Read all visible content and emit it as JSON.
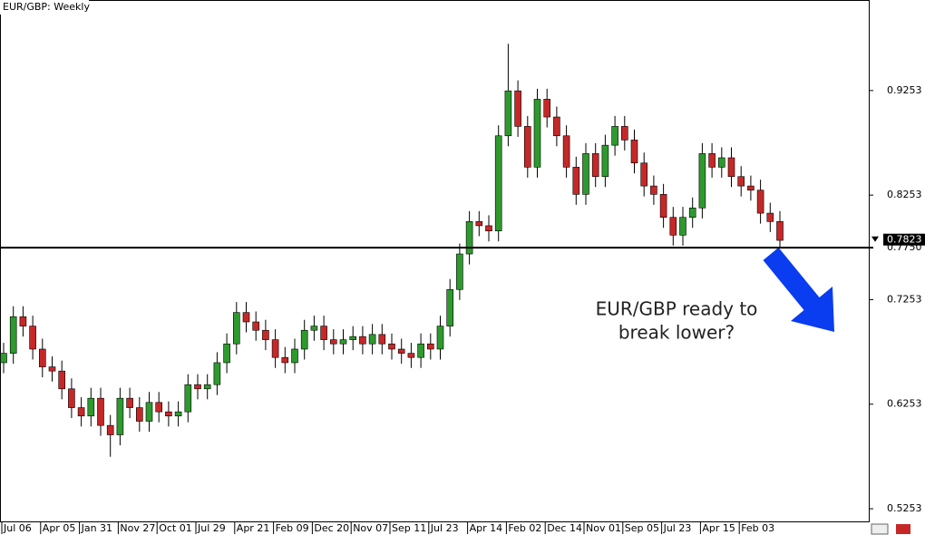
{
  "chart_data": {
    "type": "candlestick",
    "title": "EUR/GBP: Weekly",
    "categories": [
      "Jul 06",
      null,
      null,
      null,
      "Apr 05",
      null,
      null,
      null,
      "Jan 31",
      null,
      null,
      null,
      "Nov 27",
      null,
      null,
      null,
      "Oct 01",
      null,
      null,
      null,
      "Jul 29",
      null,
      null,
      null,
      "Apr 21",
      null,
      null,
      null,
      "Feb 09",
      null,
      null,
      null,
      "Dec 20",
      null,
      null,
      null,
      "Nov 07",
      null,
      null,
      null,
      "Sep 11",
      null,
      null,
      null,
      "Jul 23",
      null,
      null,
      null,
      "Apr 14",
      null,
      null,
      null,
      "Feb 02",
      null,
      null,
      null,
      "Dec 14",
      null,
      null,
      null,
      "Nov 01",
      null,
      null,
      null,
      "Sep 05",
      null,
      null,
      null,
      "Jul 23",
      null,
      null,
      null,
      "Apr 15",
      null,
      null,
      null,
      "Feb 03",
      null,
      null,
      null,
      null
    ],
    "open": [
      0.665,
      0.674,
      0.709,
      0.7,
      0.678,
      0.661,
      0.657,
      0.64,
      0.622,
      0.614,
      0.631,
      0.605,
      0.596,
      0.631,
      0.622,
      0.609,
      0.627,
      0.618,
      0.614,
      0.618,
      0.644,
      0.64,
      0.644,
      0.665,
      0.683,
      0.713,
      0.704,
      0.696,
      0.687,
      0.67,
      0.665,
      0.678,
      0.696,
      0.7,
      0.687,
      0.683,
      0.687,
      0.69,
      0.683,
      0.692,
      0.683,
      0.678,
      0.674,
      0.67,
      0.683,
      0.678,
      0.7,
      0.735,
      0.769,
      0.8,
      0.796,
      0.791,
      0.882,
      0.925,
      0.891,
      0.852,
      0.917,
      0.9,
      0.882,
      0.852,
      0.826,
      0.865,
      0.843,
      0.873,
      0.891,
      0.878,
      0.856,
      0.834,
      0.826,
      0.804,
      0.787,
      0.804,
      0.813,
      0.865,
      0.852,
      0.861,
      0.843,
      0.834,
      0.83,
      0.808,
      0.8
    ],
    "high": [
      0.684,
      0.719,
      0.719,
      0.71,
      0.688,
      0.671,
      0.667,
      0.65,
      0.632,
      0.641,
      0.641,
      0.615,
      0.641,
      0.641,
      0.632,
      0.637,
      0.637,
      0.628,
      0.628,
      0.654,
      0.654,
      0.654,
      0.675,
      0.693,
      0.723,
      0.723,
      0.714,
      0.706,
      0.697,
      0.68,
      0.688,
      0.706,
      0.71,
      0.71,
      0.697,
      0.697,
      0.7,
      0.7,
      0.702,
      0.702,
      0.693,
      0.688,
      0.684,
      0.693,
      0.693,
      0.71,
      0.745,
      0.779,
      0.81,
      0.81,
      0.806,
      0.892,
      0.97,
      0.935,
      0.901,
      0.927,
      0.927,
      0.91,
      0.892,
      0.862,
      0.875,
      0.875,
      0.883,
      0.901,
      0.901,
      0.888,
      0.866,
      0.844,
      0.836,
      0.814,
      0.814,
      0.823,
      0.875,
      0.875,
      0.871,
      0.871,
      0.853,
      0.844,
      0.84,
      0.818,
      0.81
    ],
    "low": [
      0.655,
      0.664,
      0.69,
      0.668,
      0.651,
      0.647,
      0.63,
      0.612,
      0.604,
      0.604,
      0.595,
      0.575,
      0.586,
      0.612,
      0.599,
      0.599,
      0.608,
      0.604,
      0.604,
      0.608,
      0.63,
      0.63,
      0.634,
      0.655,
      0.673,
      0.694,
      0.686,
      0.677,
      0.66,
      0.655,
      0.655,
      0.668,
      0.686,
      0.677,
      0.673,
      0.673,
      0.677,
      0.673,
      0.673,
      0.673,
      0.668,
      0.664,
      0.66,
      0.66,
      0.668,
      0.668,
      0.69,
      0.725,
      0.759,
      0.786,
      0.781,
      0.781,
      0.872,
      0.881,
      0.842,
      0.842,
      0.89,
      0.872,
      0.842,
      0.816,
      0.816,
      0.833,
      0.833,
      0.863,
      0.868,
      0.846,
      0.824,
      0.816,
      0.794,
      0.777,
      0.777,
      0.794,
      0.803,
      0.842,
      0.842,
      0.833,
      0.824,
      0.82,
      0.798,
      0.79,
      0.775
    ],
    "close": [
      0.674,
      0.709,
      0.7,
      0.678,
      0.661,
      0.657,
      0.64,
      0.622,
      0.614,
      0.631,
      0.605,
      0.596,
      0.631,
      0.622,
      0.609,
      0.627,
      0.618,
      0.614,
      0.618,
      0.644,
      0.64,
      0.644,
      0.665,
      0.683,
      0.713,
      0.704,
      0.696,
      0.687,
      0.67,
      0.665,
      0.678,
      0.696,
      0.7,
      0.687,
      0.683,
      0.687,
      0.69,
      0.683,
      0.692,
      0.683,
      0.678,
      0.674,
      0.67,
      0.683,
      0.678,
      0.7,
      0.735,
      0.769,
      0.8,
      0.796,
      0.791,
      0.882,
      0.925,
      0.891,
      0.852,
      0.917,
      0.9,
      0.882,
      0.852,
      0.826,
      0.865,
      0.843,
      0.873,
      0.891,
      0.878,
      0.856,
      0.834,
      0.826,
      0.804,
      0.787,
      0.804,
      0.813,
      0.865,
      0.852,
      0.861,
      0.843,
      0.834,
      0.83,
      0.808,
      0.8,
      0.782
    ],
    "up_color": "#2e9a2e",
    "down_color": "#c62828",
    "ylim": [
      0.5132,
      1.0119
    ],
    "yticks": [
      0.5253,
      0.6253,
      0.7253,
      0.8253,
      0.9253
    ],
    "hline": {
      "value": 0.775,
      "label": "0.7750"
    },
    "last_price": 0.7823,
    "annotation": [
      "EUR/GBP ready to",
      "break lower?"
    ]
  }
}
